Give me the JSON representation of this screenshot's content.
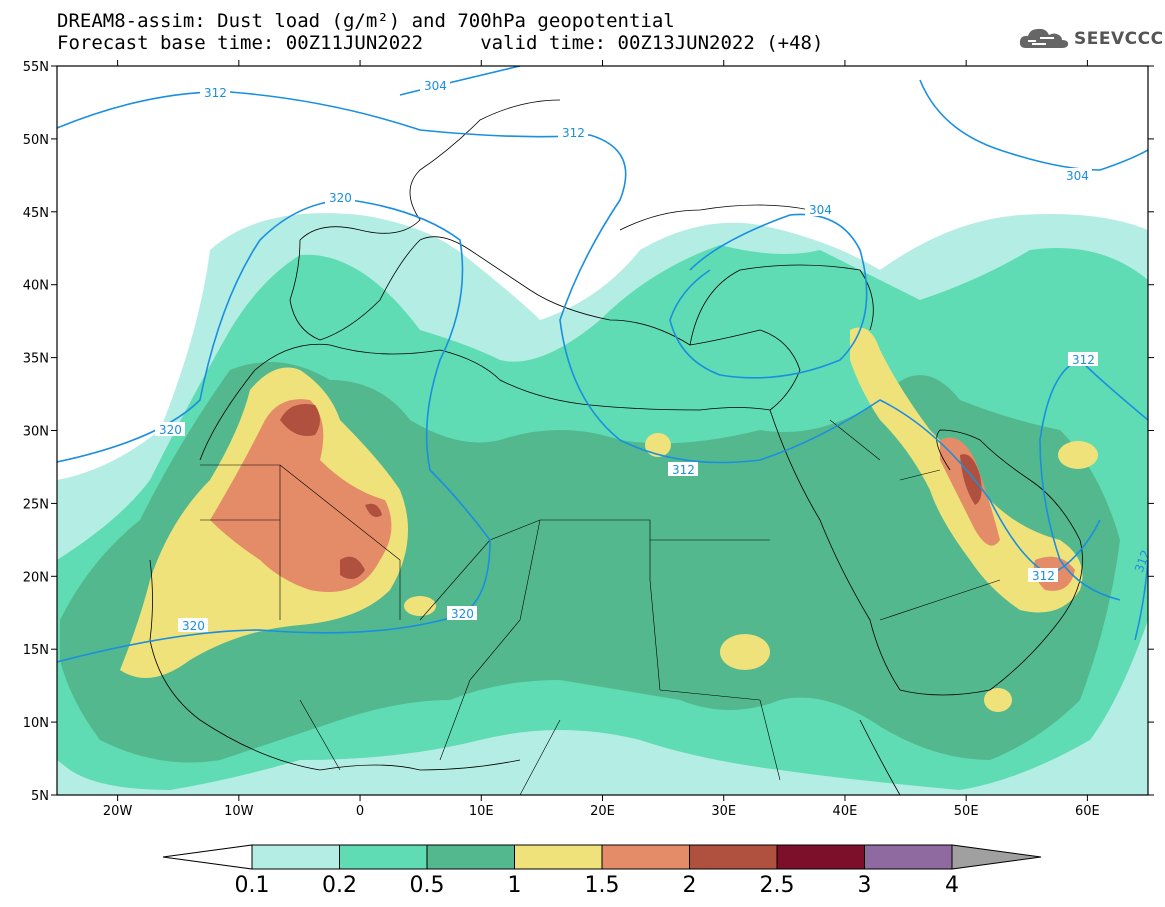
{
  "title": {
    "line1": "DREAM8-assim: Dust load (g/m²) and 700hPa geopotential",
    "line2": "Forecast base time: 00Z11JUN2022     valid time: 00Z13JUN2022 (+48)"
  },
  "logo": {
    "icon": "cloud-icon",
    "text": "SEEVCCC"
  },
  "map": {
    "lon_range": [
      -25,
      65
    ],
    "lat_range": [
      5,
      55
    ],
    "lat_ticks": [
      "55N",
      "50N",
      "45N",
      "40N",
      "35N",
      "30N",
      "25N",
      "20N",
      "15N",
      "10N",
      "5N"
    ],
    "lon_ticks": [
      "20W",
      "10W",
      "0",
      "10E",
      "20E",
      "30E",
      "40E",
      "50E",
      "60E"
    ],
    "contour_labels": [
      "312",
      "304",
      "312",
      "320",
      "304",
      "304",
      "320",
      "312",
      "312",
      "312",
      "320",
      "312",
      "312"
    ],
    "colors": {
      "0.1-0.2": "#b4ede3",
      "0.2-0.5": "#5fdcb3",
      "0.5-1": "#53b88e",
      "1-1.5": "#f0e27a",
      "1.5-2": "#e48c68",
      "2-2.5": "#b0503f",
      "2.5-3": "#7c0f2a",
      "contour": "#1a8fe0"
    }
  },
  "colorbar": {
    "labels": [
      "0.1",
      "0.2",
      "0.5",
      "1",
      "1.5",
      "2",
      "2.5",
      "3",
      "4"
    ],
    "colors": [
      "#b4ede3",
      "#5fdcb3",
      "#53b88e",
      "#f0e27a",
      "#e48c68",
      "#b0503f",
      "#7c0f2a",
      "#8e6aa0"
    ],
    "over_color": "#a0a0a0",
    "under_color": "#ffffff"
  }
}
